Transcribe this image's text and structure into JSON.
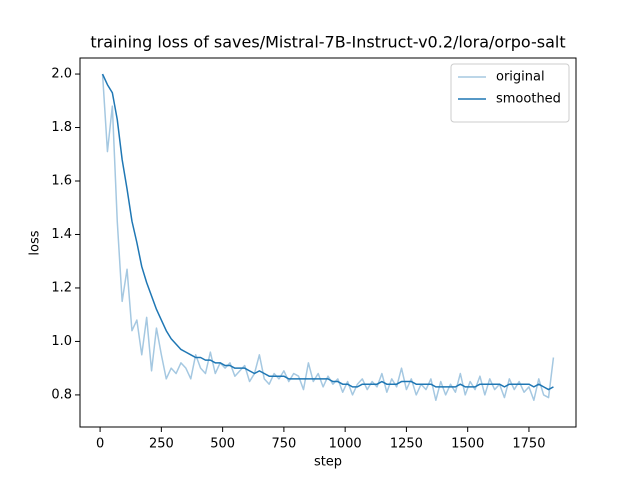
{
  "chart_data": {
    "type": "line",
    "title": "training loss of saves/Mistral-7B-Instruct-v0.2/lora/orpo-salt",
    "x_label": "step",
    "y_label": "loss",
    "x": [
      10,
      30,
      50,
      70,
      90,
      110,
      130,
      150,
      170,
      190,
      210,
      230,
      250,
      270,
      290,
      310,
      330,
      350,
      370,
      390,
      410,
      430,
      450,
      470,
      490,
      510,
      530,
      550,
      570,
      590,
      610,
      630,
      650,
      670,
      690,
      710,
      730,
      750,
      770,
      790,
      810,
      830,
      850,
      870,
      890,
      910,
      930,
      950,
      970,
      990,
      1010,
      1030,
      1050,
      1070,
      1090,
      1110,
      1130,
      1150,
      1170,
      1190,
      1210,
      1230,
      1250,
      1270,
      1290,
      1310,
      1330,
      1350,
      1370,
      1390,
      1410,
      1430,
      1450,
      1470,
      1490,
      1510,
      1530,
      1550,
      1570,
      1590,
      1610,
      1630,
      1650,
      1670,
      1690,
      1710,
      1730,
      1750,
      1770,
      1790,
      1810,
      1830,
      1850
    ],
    "series": [
      {
        "name": "original",
        "color": "#a5c8e1",
        "values": [
          2.0,
          1.71,
          1.88,
          1.45,
          1.15,
          1.27,
          1.04,
          1.08,
          0.95,
          1.09,
          0.89,
          1.05,
          0.95,
          0.86,
          0.9,
          0.88,
          0.92,
          0.9,
          0.86,
          0.95,
          0.9,
          0.88,
          0.96,
          0.88,
          0.92,
          0.9,
          0.92,
          0.87,
          0.89,
          0.91,
          0.85,
          0.88,
          0.95,
          0.86,
          0.84,
          0.88,
          0.86,
          0.89,
          0.85,
          0.88,
          0.87,
          0.82,
          0.92,
          0.85,
          0.88,
          0.83,
          0.87,
          0.84,
          0.86,
          0.81,
          0.85,
          0.8,
          0.84,
          0.86,
          0.82,
          0.85,
          0.83,
          0.88,
          0.81,
          0.86,
          0.83,
          0.9,
          0.82,
          0.86,
          0.8,
          0.84,
          0.82,
          0.86,
          0.78,
          0.85,
          0.8,
          0.84,
          0.81,
          0.88,
          0.8,
          0.85,
          0.82,
          0.87,
          0.8,
          0.86,
          0.82,
          0.84,
          0.79,
          0.86,
          0.82,
          0.85,
          0.81,
          0.83,
          0.78,
          0.86,
          0.8,
          0.79,
          0.94
        ]
      },
      {
        "name": "smoothed",
        "color": "#1f77b4",
        "values": [
          2.0,
          1.96,
          1.93,
          1.83,
          1.68,
          1.57,
          1.45,
          1.37,
          1.28,
          1.22,
          1.17,
          1.12,
          1.08,
          1.04,
          1.01,
          0.99,
          0.97,
          0.96,
          0.95,
          0.94,
          0.94,
          0.93,
          0.93,
          0.92,
          0.92,
          0.91,
          0.91,
          0.9,
          0.9,
          0.9,
          0.89,
          0.88,
          0.89,
          0.88,
          0.87,
          0.87,
          0.87,
          0.87,
          0.86,
          0.86,
          0.86,
          0.86,
          0.86,
          0.86,
          0.86,
          0.86,
          0.86,
          0.85,
          0.85,
          0.84,
          0.84,
          0.83,
          0.83,
          0.84,
          0.84,
          0.84,
          0.84,
          0.85,
          0.84,
          0.84,
          0.84,
          0.85,
          0.85,
          0.85,
          0.84,
          0.84,
          0.84,
          0.84,
          0.83,
          0.83,
          0.83,
          0.83,
          0.83,
          0.84,
          0.83,
          0.83,
          0.83,
          0.84,
          0.84,
          0.84,
          0.84,
          0.84,
          0.83,
          0.84,
          0.84,
          0.84,
          0.84,
          0.84,
          0.83,
          0.84,
          0.83,
          0.82,
          0.83
        ]
      }
    ],
    "xlim": [
      -82,
      1942
    ],
    "ylim": [
      0.68,
      2.06
    ],
    "xticks": [
      0,
      250,
      500,
      750,
      1000,
      1250,
      1500,
      1750
    ],
    "yticks": [
      0.8,
      {
        "value": 1.0,
        "label": "1.0"
      },
      1.2,
      1.4,
      1.6,
      1.8,
      {
        "value": 2.0,
        "label": "2.0"
      }
    ],
    "grid": false,
    "legend": "upper right"
  }
}
